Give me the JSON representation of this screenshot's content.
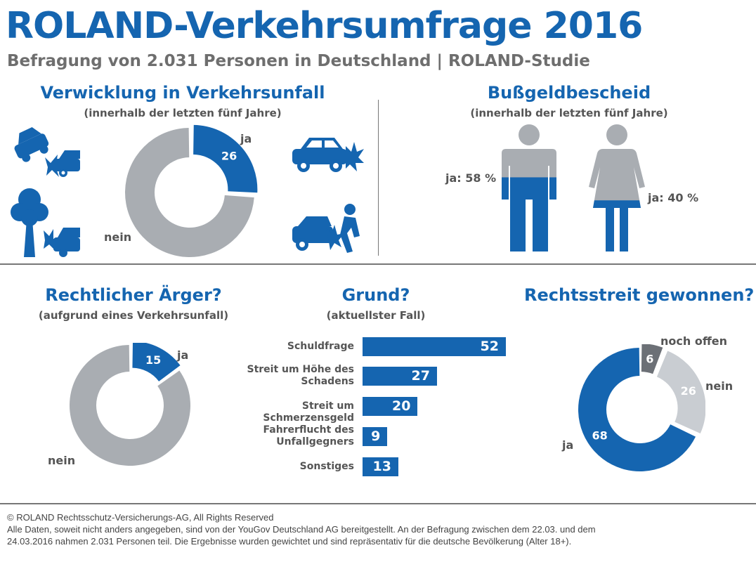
{
  "title": "ROLAND-Verkehrsumfrage 2016",
  "subtitle": "Befragung von 2.031 Personen in Deutschland | ROLAND-Studie",
  "colors": {
    "blue": "#1565b0",
    "gray": "#a9adb2",
    "lightgray": "#c9cdd2",
    "darkgray": "#6c7076"
  },
  "icons": [
    "car-crash-icon",
    "tree-crash-icon",
    "car-collision-icon",
    "pedestrian-crash-icon",
    "man-figure-icon",
    "woman-figure-icon"
  ],
  "sections": {
    "unfall": {
      "title": "Verwicklung in Verkehrsunfall",
      "subtitle": "(innerhalb der letzten fünf Jahre)"
    },
    "bussgeld": {
      "title": "Bußgeldbescheid",
      "subtitle": "(innerhalb der letzten fünf Jahre)",
      "man_label": "ja: 58 %",
      "woman_label": "ja: 40 %"
    },
    "aerger": {
      "title": "Rechtlicher Ärger?",
      "subtitle": "(aufgrund eines Verkehrsunfall)"
    },
    "grund": {
      "title": "Grund?",
      "subtitle": "(aktuellster Fall)"
    },
    "gewonnen": {
      "title": "Rechtsstreit gewonnen?"
    }
  },
  "chart_data": [
    {
      "type": "pie",
      "slices": [
        {
          "label": "ja",
          "value": 26
        },
        {
          "label": "nein",
          "value": 74
        }
      ],
      "shown_values": [
        "26"
      ]
    },
    {
      "type": "bar",
      "categories": [
        "Männer",
        "Frauen"
      ],
      "values": [
        58,
        40
      ],
      "unit": "%"
    },
    {
      "type": "pie",
      "slices": [
        {
          "label": "ja",
          "value": 15
        },
        {
          "label": "nein",
          "value": 85
        }
      ],
      "shown_values": [
        "15"
      ]
    },
    {
      "type": "bar",
      "orientation": "horizontal",
      "categories": [
        "Schuldfrage",
        "Streit um Höhe des Schadens",
        "Streit um Schmerzensgeld",
        "Fahrerflucht des Unfallgegners",
        "Sonstiges"
      ],
      "values": [
        52,
        27,
        20,
        9,
        13
      ]
    },
    {
      "type": "pie",
      "slices": [
        {
          "label": "noch offen",
          "value": 6
        },
        {
          "label": "nein",
          "value": 26
        },
        {
          "label": "ja",
          "value": 68
        }
      ],
      "shown_values": [
        "6",
        "26",
        "68"
      ]
    }
  ],
  "footer": {
    "copyright": "© ROLAND Rechtsschutz-Versicherungs-AG,  All Rights  Reserved",
    "line2": "Alle Daten,  soweit nicht anders  angegeben,  sind von der YouGov Deutschland  AG bereitgestellt.  An der Befragung  zwischen dem 22.03.  und dem",
    "line3": "24.03.2016 nahmen  2.031  Personen  teil. Die Ergebnisse  wurden gewichtet  und  sind repräsentativ für die deutsche  Bevölkerung  (Alter 18+)."
  }
}
